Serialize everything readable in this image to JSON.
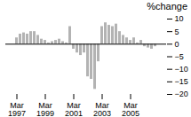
{
  "chart_data": {
    "type": "bar",
    "title": "%change",
    "categories": [
      "Mar\n1997",
      null,
      null,
      null,
      null,
      null,
      null,
      null,
      "Mar\n1999",
      null,
      null,
      null,
      null,
      null,
      null,
      null,
      "Mar\n2001",
      null,
      null,
      null,
      null,
      null,
      null,
      null,
      "Mar\n2003",
      null,
      null,
      null,
      null,
      null,
      null,
      null,
      "Mar\n2005",
      null,
      null,
      null,
      null,
      null,
      null,
      null
    ],
    "values": [
      2.5,
      4.0,
      4.5,
      4.0,
      5.0,
      5.0,
      3.5,
      2.0,
      1.5,
      0.5,
      1.0,
      1.5,
      2.0,
      1.0,
      0.5,
      7.0,
      -2.0,
      -3.5,
      -4.5,
      -3.5,
      -13.0,
      -14.0,
      -18.0,
      -7.0,
      7.0,
      8.5,
      7.5,
      7.0,
      8.0,
      5.0,
      3.5,
      2.5,
      1.5,
      2.5,
      0.5,
      1.5,
      -1.0,
      -1.5,
      -2.0,
      -1.0
    ],
    "color": "#b3b3b3",
    "ylim": [
      -20,
      10
    ],
    "yticks": [
      10,
      5,
      0,
      -5,
      -10,
      -15,
      -20
    ],
    "grid": false
  }
}
